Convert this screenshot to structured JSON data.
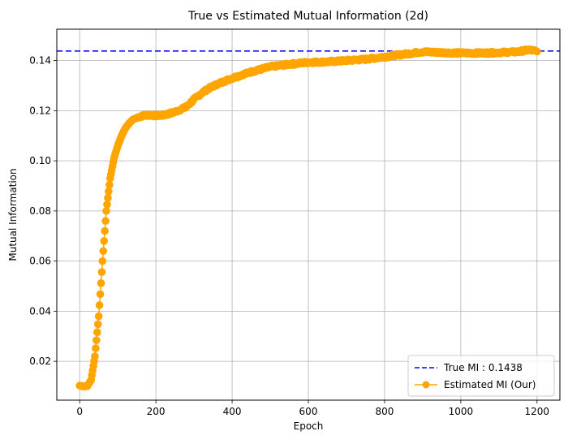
{
  "chart_data": {
    "type": "line",
    "title": "True vs Estimated Mutual Information (2d)",
    "xlabel": "Epoch",
    "ylabel": "Mutual Information",
    "xlim": [
      -60,
      1260
    ],
    "ylim": [
      0.0045,
      0.1525
    ],
    "xticks": [
      0,
      200,
      400,
      600,
      800,
      1000,
      1200
    ],
    "yticks": [
      0.02,
      0.04,
      0.06,
      0.08,
      0.1,
      0.12,
      0.14
    ],
    "xtick_labels": [
      "0",
      "200",
      "400",
      "600",
      "800",
      "1000",
      "1200"
    ],
    "ytick_labels": [
      "0.02",
      "0.04",
      "0.06",
      "0.08",
      "0.10",
      "0.12",
      "0.14"
    ],
    "grid": true,
    "legend_position": "lower-right",
    "reference_line": {
      "name": "True MI : 0.1438",
      "value": 0.1438,
      "color": "#0000ff",
      "style": "dashed"
    },
    "series": [
      {
        "name": "Estimated MI (Our)",
        "color": "#ffa500",
        "marker": "circle",
        "points": [
          [
            0,
            0.0103
          ],
          [
            10,
            0.01
          ],
          [
            20,
            0.0101
          ],
          [
            30,
            0.0125
          ],
          [
            40,
            0.022
          ],
          [
            50,
            0.038
          ],
          [
            60,
            0.06
          ],
          [
            70,
            0.08
          ],
          [
            80,
            0.093
          ],
          [
            90,
            0.101
          ],
          [
            100,
            0.106
          ],
          [
            110,
            0.11
          ],
          [
            120,
            0.113
          ],
          [
            130,
            0.115
          ],
          [
            140,
            0.1165
          ],
          [
            160,
            0.1178
          ],
          [
            180,
            0.1183
          ],
          [
            200,
            0.118
          ],
          [
            220,
            0.1182
          ],
          [
            250,
            0.1195
          ],
          [
            280,
            0.1215
          ],
          [
            300,
            0.1245
          ],
          [
            320,
            0.127
          ],
          [
            340,
            0.129
          ],
          [
            360,
            0.1305
          ],
          [
            400,
            0.133
          ],
          [
            450,
            0.1355
          ],
          [
            500,
            0.1375
          ],
          [
            550,
            0.1385
          ],
          [
            600,
            0.1393
          ],
          [
            650,
            0.1395
          ],
          [
            700,
            0.14
          ],
          [
            750,
            0.1405
          ],
          [
            800,
            0.1415
          ],
          [
            850,
            0.1425
          ],
          [
            900,
            0.1435
          ],
          [
            950,
            0.1432
          ],
          [
            1000,
            0.143
          ],
          [
            1050,
            0.143
          ],
          [
            1100,
            0.1432
          ],
          [
            1150,
            0.1435
          ],
          [
            1180,
            0.1443
          ],
          [
            1200,
            0.1436
          ]
        ]
      }
    ]
  }
}
